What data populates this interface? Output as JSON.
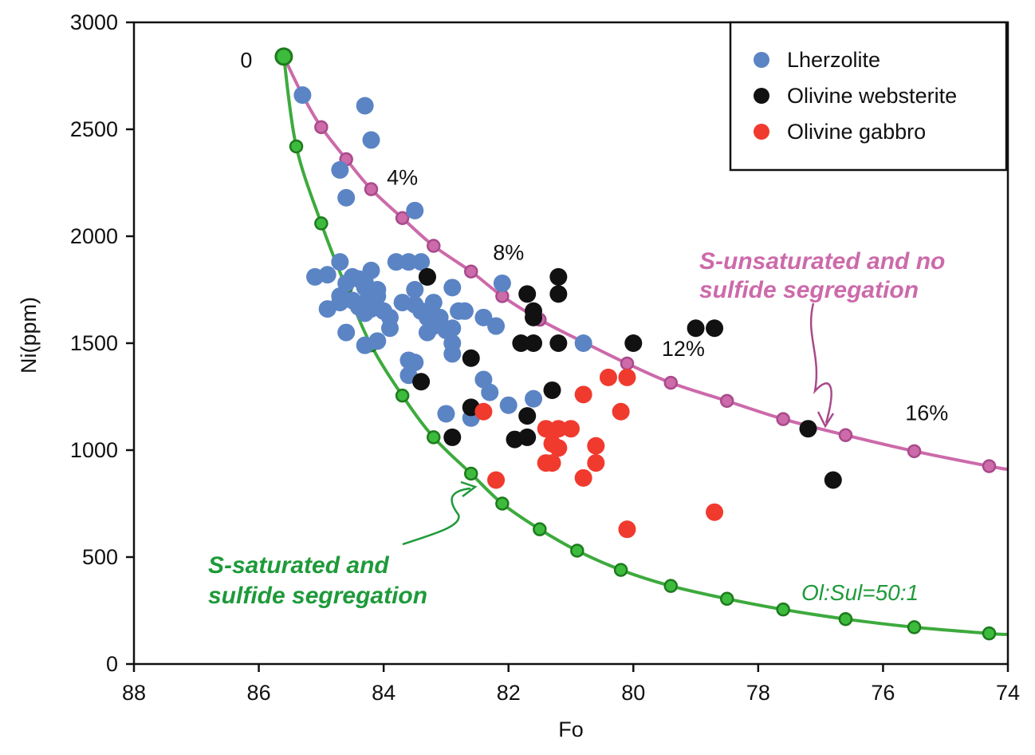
{
  "chart_data": {
    "type": "scatter",
    "xlabel": "Fo",
    "ylabel": "Ni(ppm)",
    "xlim": [
      88,
      74
    ],
    "ylim": [
      0,
      3000
    ],
    "x_reversed": true,
    "x_ticks": [
      "88",
      "86",
      "84",
      "82",
      "80",
      "78",
      "76",
      "74"
    ],
    "y_ticks": [
      "0",
      "500",
      "1000",
      "1500",
      "2000",
      "2500",
      "3000"
    ],
    "legend_position": "top-right",
    "series": [
      {
        "name": "Lherzolite",
        "color": "#5b84c4",
        "points": [
          [
            85.3,
            2660
          ],
          [
            84.3,
            2610
          ],
          [
            84.2,
            2450
          ],
          [
            84.7,
            2310
          ],
          [
            84.6,
            2180
          ],
          [
            83.5,
            2120
          ],
          [
            84.7,
            1880
          ],
          [
            83.8,
            1880
          ],
          [
            83.6,
            1880
          ],
          [
            83.4,
            1880
          ],
          [
            84.2,
            1840
          ],
          [
            84.5,
            1810
          ],
          [
            84.4,
            1800
          ],
          [
            84.3,
            1790
          ],
          [
            85.1,
            1810
          ],
          [
            84.9,
            1820
          ],
          [
            84.6,
            1780
          ],
          [
            84.3,
            1760
          ],
          [
            84.1,
            1750
          ],
          [
            83.3,
            1810
          ],
          [
            83.5,
            1750
          ],
          [
            84.7,
            1720
          ],
          [
            84.5,
            1700
          ],
          [
            84.3,
            1690
          ],
          [
            84.1,
            1720
          ],
          [
            84.7,
            1690
          ],
          [
            84.4,
            1670
          ],
          [
            84.2,
            1660
          ],
          [
            84.0,
            1650
          ],
          [
            83.7,
            1690
          ],
          [
            83.5,
            1680
          ],
          [
            83.4,
            1650
          ],
          [
            83.2,
            1690
          ],
          [
            83.3,
            1620
          ],
          [
            83.1,
            1620
          ],
          [
            82.9,
            1760
          ],
          [
            82.8,
            1650
          ],
          [
            82.7,
            1650
          ],
          [
            84.9,
            1660
          ],
          [
            84.3,
            1640
          ],
          [
            83.9,
            1620
          ],
          [
            83.2,
            1580
          ],
          [
            83.0,
            1560
          ],
          [
            82.9,
            1570
          ],
          [
            83.3,
            1550
          ],
          [
            83.9,
            1570
          ],
          [
            84.6,
            1550
          ],
          [
            84.3,
            1490
          ],
          [
            84.1,
            1510
          ],
          [
            82.9,
            1500
          ],
          [
            82.9,
            1450
          ],
          [
            83.6,
            1420
          ],
          [
            83.5,
            1410
          ],
          [
            83.6,
            1350
          ],
          [
            82.4,
            1620
          ],
          [
            82.2,
            1580
          ],
          [
            82.1,
            1780
          ],
          [
            82.4,
            1330
          ],
          [
            82.3,
            1270
          ],
          [
            82.0,
            1210
          ],
          [
            81.6,
            1240
          ],
          [
            83.0,
            1170
          ],
          [
            82.6,
            1150
          ],
          [
            80.8,
            1500
          ]
        ]
      },
      {
        "name": "Olivine websterite",
        "color": "#111111",
        "points": [
          [
            83.3,
            1810
          ],
          [
            81.2,
            1810
          ],
          [
            81.7,
            1730
          ],
          [
            81.2,
            1730
          ],
          [
            81.6,
            1650
          ],
          [
            81.6,
            1620
          ],
          [
            81.8,
            1500
          ],
          [
            81.6,
            1500
          ],
          [
            81.2,
            1500
          ],
          [
            80.0,
            1500
          ],
          [
            79.0,
            1570
          ],
          [
            78.7,
            1570
          ],
          [
            82.6,
            1430
          ],
          [
            83.4,
            1320
          ],
          [
            81.3,
            1280
          ],
          [
            82.6,
            1200
          ],
          [
            81.7,
            1160
          ],
          [
            82.9,
            1060
          ],
          [
            81.9,
            1050
          ],
          [
            81.7,
            1060
          ],
          [
            77.2,
            1100
          ],
          [
            76.8,
            860
          ]
        ]
      },
      {
        "name": "Olivine gabbro",
        "color": "#f03a2e",
        "points": [
          [
            82.4,
            1180
          ],
          [
            82.2,
            860
          ],
          [
            81.4,
            1100
          ],
          [
            81.2,
            1100
          ],
          [
            81.0,
            1100
          ],
          [
            80.8,
            1260
          ],
          [
            80.4,
            1340
          ],
          [
            80.1,
            1340
          ],
          [
            80.2,
            1180
          ],
          [
            81.3,
            1030
          ],
          [
            81.2,
            1010
          ],
          [
            80.6,
            1020
          ],
          [
            81.4,
            940
          ],
          [
            81.3,
            940
          ],
          [
            80.6,
            940
          ],
          [
            80.8,
            870
          ],
          [
            80.1,
            630
          ],
          [
            78.7,
            710
          ]
        ]
      }
    ],
    "curves": [
      {
        "name": "S-unsaturated and no sulfide segregation",
        "color": "#cc6aaa",
        "marker_fill": "#cc6aaa",
        "marker_stroke": "#a84a8a",
        "points": [
          [
            85.6,
            2840
          ],
          [
            85.3,
            2660
          ],
          [
            85.0,
            2510
          ],
          [
            84.6,
            2360
          ],
          [
            84.2,
            2220
          ],
          [
            83.7,
            2085
          ],
          [
            83.2,
            1955
          ],
          [
            82.6,
            1835
          ],
          [
            82.1,
            1720
          ],
          [
            81.5,
            1610
          ],
          [
            80.8,
            1505
          ],
          [
            80.1,
            1405
          ],
          [
            79.4,
            1315
          ],
          [
            78.5,
            1230
          ],
          [
            77.6,
            1145
          ],
          [
            76.6,
            1070
          ],
          [
            75.5,
            995
          ],
          [
            74.3,
            925
          ],
          [
            74.0,
            910
          ]
        ],
        "marker_indices": [
          0,
          2,
          3,
          4,
          5,
          6,
          7,
          8,
          9,
          10,
          11,
          12,
          13,
          14,
          15,
          16,
          17
        ]
      },
      {
        "name": "Ol:Sul=50:1",
        "color": "#3daa3d",
        "marker_fill": "#3dbb3d",
        "marker_stroke": "#1d7a1d",
        "points": [
          [
            85.6,
            2840
          ],
          [
            85.4,
            2420
          ],
          [
            85.0,
            2060
          ],
          [
            84.6,
            1760
          ],
          [
            84.2,
            1490
          ],
          [
            83.7,
            1255
          ],
          [
            83.2,
            1060
          ],
          [
            82.6,
            890
          ],
          [
            82.1,
            750
          ],
          [
            81.5,
            630
          ],
          [
            80.9,
            530
          ],
          [
            80.2,
            440
          ],
          [
            79.4,
            365
          ],
          [
            78.5,
            305
          ],
          [
            77.6,
            255
          ],
          [
            76.6,
            210
          ],
          [
            75.5,
            172
          ],
          [
            74.3,
            143
          ],
          [
            74.0,
            138
          ]
        ],
        "marker_indices": [
          1,
          2,
          3,
          4,
          5,
          6,
          7,
          8,
          9,
          10,
          11,
          12,
          13,
          14,
          15,
          16,
          17
        ]
      }
    ],
    "curve_labels": [
      {
        "text": "0",
        "x": 86.2,
        "y": 2790
      },
      {
        "text": "4%",
        "x": 83.7,
        "y": 2240
      },
      {
        "text": "8%",
        "x": 82.0,
        "y": 1890
      },
      {
        "text": "12%",
        "x": 79.2,
        "y": 1440
      },
      {
        "text": "16%",
        "x": 75.3,
        "y": 1140
      }
    ],
    "annotations": [
      {
        "lines": [
          "S-unsaturated and no",
          "sulfide segregation"
        ],
        "color": "#cc6aaa"
      },
      {
        "lines": [
          "S-saturated and",
          "sulfide segregation"
        ],
        "color": "#1e9a3a"
      },
      {
        "lines": [
          "Ol:Sul=50:1"
        ],
        "color": "#1e9a3a"
      }
    ]
  }
}
